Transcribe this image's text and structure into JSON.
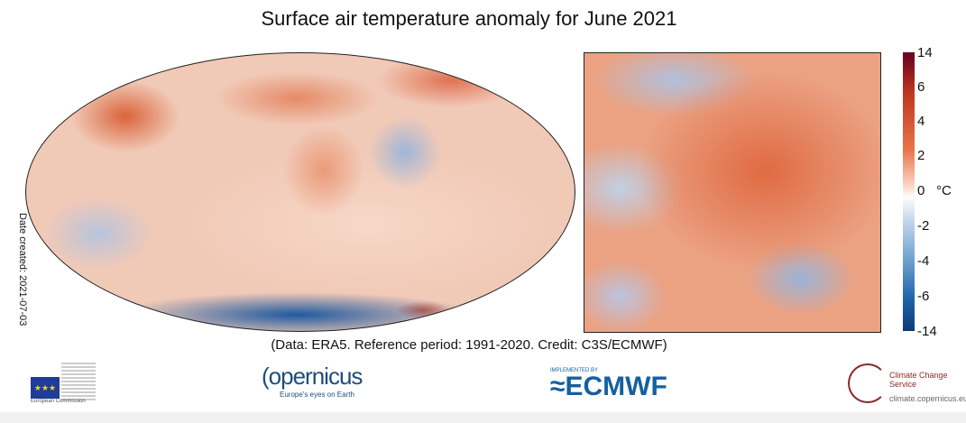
{
  "title": "Surface air temperature anomaly for June 2021",
  "date_created": "Date created: 2021-07-03",
  "credit": "(Data: ERA5.  Reference period: 1991-2020.  Credit: C3S/ECMWF)",
  "colorbar": {
    "unit": "°C",
    "ticks": [
      "14",
      "6",
      "4",
      "2",
      "0",
      "-2",
      "-4",
      "-6",
      "-14"
    ],
    "colors": {
      "max": "#67001f",
      "zero": "#fdfdfd",
      "min": "#0c3a78"
    }
  },
  "panels": [
    "world-map",
    "europe-map"
  ],
  "logos": {
    "eu": {
      "text": "European Commission"
    },
    "copernicus": {
      "name": "opernicus",
      "tagline": "Europe's eyes on Earth"
    },
    "ecmwf": {
      "small": "IMPLEMENTED BY",
      "name": "ECMWF"
    },
    "c3s": {
      "name": "Climate Change Service",
      "url": "climate.copernicus.eu"
    }
  }
}
